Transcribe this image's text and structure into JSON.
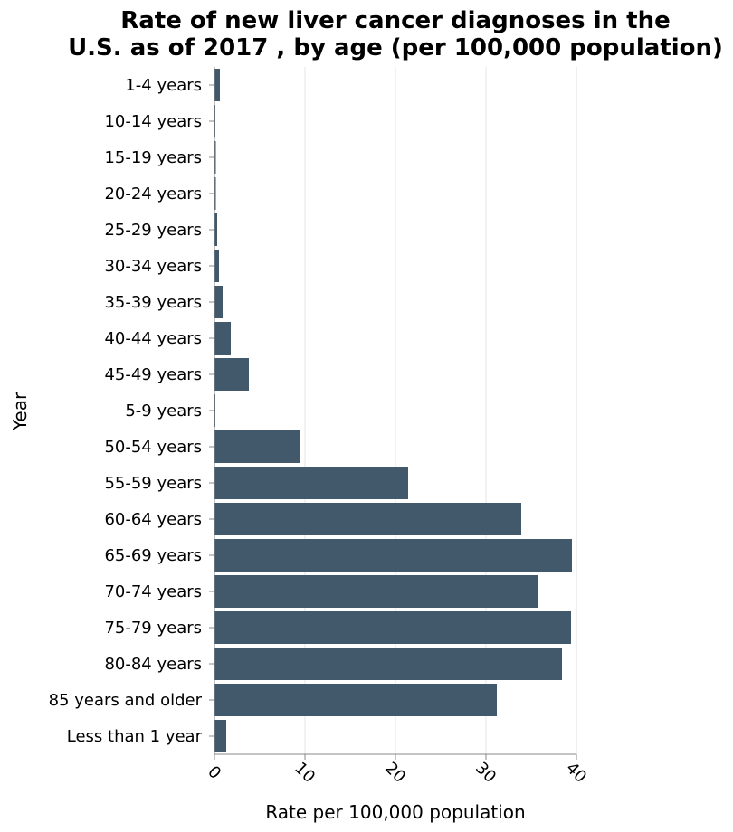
{
  "chart_data": {
    "type": "bar",
    "orientation": "horizontal",
    "title_lines": [
      "Rate of new liver cancer diagnoses in the",
      "U.S. as of 2017 , by age (per 100,000 population)"
    ],
    "xlabel": "Rate per 100,000 population",
    "ylabel": "Year",
    "categories": [
      "1-4 years",
      "10-14 years",
      "15-19 years",
      "20-24 years",
      "25-29 years",
      "30-34 years",
      "35-39 years",
      "40-44 years",
      "45-49 years",
      "5-9 years",
      "50-54 years",
      "55-59 years",
      "60-64 years",
      "65-69 years",
      "70-74 years",
      "75-79 years",
      "80-84 years",
      "85 years and older",
      "Less than 1 year"
    ],
    "values": [
      0.6,
      0.1,
      0.15,
      0.15,
      0.3,
      0.5,
      0.9,
      1.8,
      3.8,
      0.1,
      9.5,
      21.4,
      33.9,
      39.5,
      35.7,
      39.4,
      38.4,
      31.2,
      1.3
    ],
    "xlim": [
      0,
      40
    ],
    "xticks": [
      0,
      10,
      20,
      30,
      40
    ],
    "grid": true,
    "bar_color": "#41596b"
  }
}
